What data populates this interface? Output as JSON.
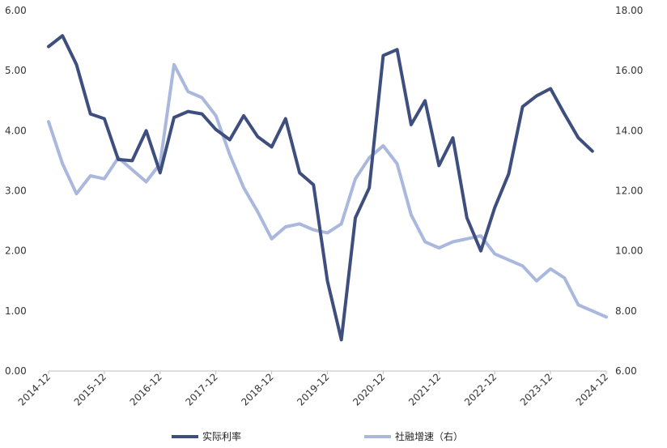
{
  "chart_data": {
    "type": "line",
    "title": "",
    "xlabel": "",
    "ylabel": "",
    "y2label": "",
    "x_labels": [
      "2014-12",
      "2015-12",
      "2016-12",
      "2017-12",
      "2018-12",
      "2019-12",
      "2020-12",
      "2021-12",
      "2022-12",
      "2023-12",
      "2024-12"
    ],
    "x": [
      "2014-12",
      "2015-03",
      "2015-06",
      "2015-09",
      "2015-12",
      "2016-03",
      "2016-06",
      "2016-09",
      "2016-12",
      "2017-03",
      "2017-06",
      "2017-09",
      "2017-12",
      "2018-03",
      "2018-06",
      "2018-09",
      "2018-12",
      "2019-03",
      "2019-06",
      "2019-09",
      "2019-12",
      "2020-03",
      "2020-06",
      "2020-09",
      "2020-12",
      "2021-03",
      "2021-06",
      "2021-09",
      "2021-12",
      "2022-03",
      "2022-06",
      "2022-09",
      "2022-12",
      "2023-03",
      "2023-06",
      "2023-09",
      "2023-12",
      "2024-03",
      "2024-06",
      "2024-09",
      "2024-12"
    ],
    "ylim": [
      0,
      6
    ],
    "y2lim": [
      6,
      18
    ],
    "y_ticks": [
      "0.00",
      "1.00",
      "2.00",
      "3.00",
      "4.00",
      "5.00",
      "6.00"
    ],
    "y2_ticks": [
      "6.00",
      "8.00",
      "10.00",
      "12.00",
      "14.00",
      "16.00",
      "18.00"
    ],
    "legend_position": "bottom",
    "series": [
      {
        "name": "实际利率",
        "axis": "left",
        "color": "#3e4f7e",
        "values": [
          5.4,
          5.58,
          5.1,
          4.28,
          4.2,
          3.52,
          3.5,
          4.0,
          3.3,
          4.22,
          4.32,
          4.28,
          4.02,
          3.85,
          4.25,
          3.9,
          3.73,
          4.2,
          3.3,
          3.1,
          1.5,
          0.52,
          2.55,
          3.05,
          5.25,
          5.35,
          4.1,
          4.5,
          3.42,
          3.88,
          2.55,
          2.0,
          2.72,
          3.28,
          4.4,
          4.58,
          4.7,
          4.28,
          3.88,
          3.66,
          null
        ]
      },
      {
        "name": "社融增速（右）",
        "axis": "right",
        "color": "#a9b8dc",
        "values": [
          14.3,
          12.9,
          11.9,
          12.5,
          12.4,
          13.1,
          12.7,
          12.3,
          12.9,
          16.2,
          15.3,
          15.1,
          14.5,
          13.2,
          12.1,
          11.3,
          10.4,
          10.8,
          10.9,
          10.7,
          10.6,
          10.9,
          12.4,
          13.1,
          13.5,
          12.9,
          11.2,
          10.3,
          10.1,
          10.3,
          10.4,
          10.5,
          9.9,
          9.7,
          9.5,
          9.0,
          9.4,
          9.1,
          8.2,
          8.0,
          7.8
        ]
      }
    ]
  }
}
